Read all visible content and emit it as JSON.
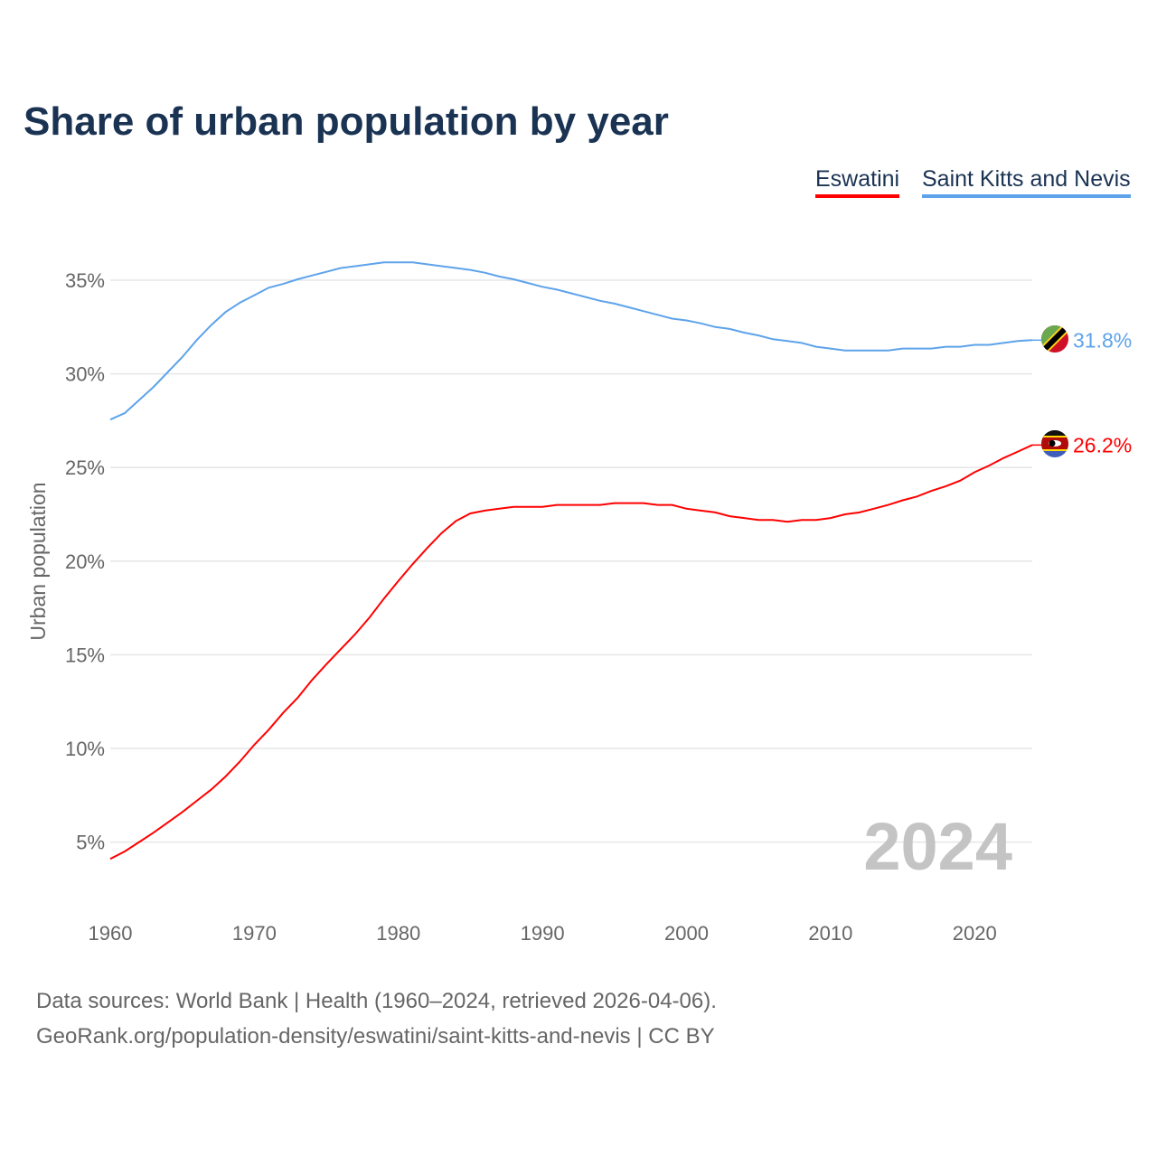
{
  "chart_data": {
    "type": "line",
    "title": "Share of urban population by year",
    "xlabel": "",
    "ylabel": "Urban population",
    "xlim": [
      1960,
      2024
    ],
    "ylim": [
      0,
      37
    ],
    "yticks": [
      5,
      10,
      15,
      20,
      25,
      30,
      35
    ],
    "ytick_labels": [
      "5%",
      "10%",
      "15%",
      "20%",
      "25%",
      "30%",
      "35%"
    ],
    "xticks": [
      1960,
      1970,
      1980,
      1990,
      2000,
      2010,
      2020
    ],
    "xtick_labels": [
      "1960",
      "1970",
      "1980",
      "1990",
      "2000",
      "2010",
      "2020"
    ],
    "grid": true,
    "legend_position": "top-right",
    "year_watermark": "2024",
    "x": [
      1960,
      1961,
      1962,
      1963,
      1964,
      1965,
      1966,
      1967,
      1968,
      1969,
      1970,
      1971,
      1972,
      1973,
      1974,
      1975,
      1976,
      1977,
      1978,
      1979,
      1980,
      1981,
      1982,
      1983,
      1984,
      1985,
      1986,
      1987,
      1988,
      1989,
      1990,
      1991,
      1992,
      1993,
      1994,
      1995,
      1996,
      1997,
      1998,
      1999,
      2000,
      2001,
      2002,
      2003,
      2004,
      2005,
      2006,
      2007,
      2008,
      2009,
      2010,
      2011,
      2012,
      2013,
      2014,
      2015,
      2016,
      2017,
      2018,
      2019,
      2020,
      2021,
      2022,
      2023,
      2024
    ],
    "series": [
      {
        "name": "Eswatini",
        "color": "#ff0000",
        "end_label": "26.2%",
        "flag": "eswatini-flag",
        "values": [
          4.1,
          4.5,
          5.0,
          5.5,
          6.05,
          6.6,
          7.2,
          7.8,
          8.5,
          9.3,
          10.2,
          11.0,
          11.9,
          12.7,
          13.65,
          14.5,
          15.3,
          16.1,
          17.0,
          18.0,
          18.95,
          19.85,
          20.7,
          21.5,
          22.15,
          22.55,
          22.7,
          22.8,
          22.9,
          22.9,
          22.9,
          23.0,
          23.0,
          23.0,
          23.0,
          23.1,
          23.1,
          23.1,
          23.0,
          23.0,
          22.8,
          22.7,
          22.6,
          22.4,
          22.3,
          22.2,
          22.2,
          22.1,
          22.2,
          22.2,
          22.3,
          22.5,
          22.6,
          22.8,
          23.0,
          23.25,
          23.45,
          23.75,
          24.0,
          24.3,
          24.75,
          25.1,
          25.5,
          25.85,
          26.2
        ]
      },
      {
        "name": "Saint Kitts and Nevis",
        "color": "#5ea3ea",
        "end_label": "31.8%",
        "flag": "saint-kitts-and-nevis-flag",
        "values": [
          27.56,
          27.9,
          28.6,
          29.3,
          30.1,
          30.9,
          31.8,
          32.6,
          33.3,
          33.8,
          34.2,
          34.6,
          34.8,
          35.05,
          35.25,
          35.45,
          35.65,
          35.75,
          35.85,
          35.95,
          35.95,
          35.95,
          35.85,
          35.75,
          35.65,
          35.55,
          35.4,
          35.2,
          35.05,
          34.85,
          34.65,
          34.5,
          34.3,
          34.1,
          33.9,
          33.75,
          33.55,
          33.35,
          33.15,
          32.95,
          32.85,
          32.7,
          32.5,
          32.4,
          32.2,
          32.05,
          31.85,
          31.75,
          31.65,
          31.45,
          31.35,
          31.25,
          31.25,
          31.25,
          31.25,
          31.35,
          31.35,
          31.35,
          31.45,
          31.45,
          31.55,
          31.55,
          31.65,
          31.75,
          31.8
        ]
      }
    ]
  },
  "footer": {
    "line1": "Data sources: World Bank | Health (1960–2024, retrieved 2026-04-06).",
    "line2": "GeoRank.org/population-density/eswatini/saint-kitts-and-nevis | CC BY"
  }
}
